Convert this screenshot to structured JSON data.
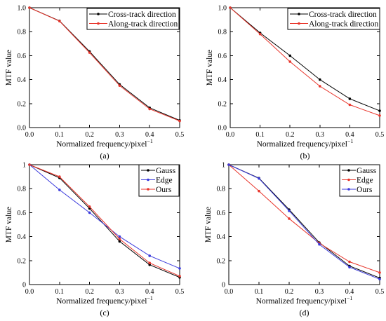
{
  "chart_data": [
    {
      "type": "line",
      "panel_label": "(a)",
      "xlabel": "Normalized frequency/pixel",
      "xlabel_sup": "−1",
      "ylabel": "MTF value",
      "xlim": [
        0,
        0.5
      ],
      "ylim": [
        0,
        1
      ],
      "xticks": [
        "0.0",
        "0.1",
        "0.2",
        "0.3",
        "0.4",
        "0.5"
      ],
      "yticks": [
        "0.0",
        "0.2",
        "0.4",
        "0.6",
        "0.8",
        "1.0"
      ],
      "legend_position": "top-right",
      "grid": false,
      "x": [
        0,
        0.1,
        0.2,
        0.3,
        0.4,
        0.5
      ],
      "series": [
        {
          "name": "Cross-track direction",
          "color": "#000000",
          "values": [
            1.0,
            0.89,
            0.635,
            0.36,
            0.165,
            0.06
          ]
        },
        {
          "name": "Along-track direction",
          "color": "#e8362c",
          "values": [
            1.0,
            0.888,
            0.625,
            0.35,
            0.155,
            0.055
          ]
        }
      ]
    },
    {
      "type": "line",
      "panel_label": "(b)",
      "xlabel": "Normalized frequency/pixel",
      "xlabel_sup": "−1",
      "ylabel": "MTF value",
      "xlim": [
        0,
        0.5
      ],
      "ylim": [
        0,
        1
      ],
      "xticks": [
        "0.0",
        "0.1",
        "0.2",
        "0.3",
        "0.4",
        "0.5"
      ],
      "yticks": [
        "0.0",
        "0.2",
        "0.4",
        "0.6",
        "0.8",
        "1.0"
      ],
      "legend_position": "top-right",
      "grid": false,
      "x": [
        0,
        0.1,
        0.2,
        0.3,
        0.4,
        0.5
      ],
      "series": [
        {
          "name": "Cross-track direction",
          "color": "#000000",
          "values": [
            1.0,
            0.79,
            0.6,
            0.4,
            0.24,
            0.14
          ]
        },
        {
          "name": "Along-track direction",
          "color": "#e8362c",
          "values": [
            1.0,
            0.78,
            0.55,
            0.345,
            0.19,
            0.1
          ]
        }
      ]
    },
    {
      "type": "line",
      "panel_label": "(c)",
      "xlabel": "Normalized frequency/pixel",
      "xlabel_sup": "−1",
      "ylabel": "MTF value",
      "xlim": [
        0,
        0.5
      ],
      "ylim": [
        0,
        1
      ],
      "xticks": [
        "0.0",
        "0.1",
        "0.2",
        "0.3",
        "0.4",
        "0.5"
      ],
      "yticks": [
        "0",
        "0.2",
        "0.4",
        "0.6",
        "0.8",
        "1"
      ],
      "legend_position": "top-right",
      "grid": false,
      "x": [
        0,
        0.1,
        0.2,
        0.3,
        0.4,
        0.5
      ],
      "series": [
        {
          "name": "Gauss",
          "color": "#000000",
          "values": [
            1.0,
            0.89,
            0.635,
            0.36,
            0.165,
            0.06
          ]
        },
        {
          "name": "Edge",
          "color": "#3b3bdc",
          "values": [
            1.0,
            0.79,
            0.6,
            0.4,
            0.24,
            0.135
          ]
        },
        {
          "name": "Ours",
          "color": "#e8362c",
          "values": [
            1.0,
            0.9,
            0.65,
            0.38,
            0.18,
            0.07
          ]
        }
      ]
    },
    {
      "type": "line",
      "panel_label": "(d)",
      "xlabel": "Normalized frequency/pixel",
      "xlabel_sup": "−1",
      "ylabel": "MTF value",
      "xlim": [
        0,
        0.5
      ],
      "ylim": [
        0,
        1
      ],
      "xticks": [
        "0.0",
        "0.1",
        "0.2",
        "0.3",
        "0.4",
        "0.5"
      ],
      "yticks": [
        "0",
        "0.2",
        "0.4",
        "0.6",
        "0.8",
        "1"
      ],
      "legend_position": "top-right",
      "grid": false,
      "x": [
        0,
        0.1,
        0.2,
        0.3,
        0.4,
        0.5
      ],
      "series": [
        {
          "name": "Gauss",
          "color": "#000000",
          "values": [
            1.0,
            0.888,
            0.625,
            0.35,
            0.155,
            0.055
          ]
        },
        {
          "name": "Edge",
          "color": "#e8362c",
          "values": [
            1.0,
            0.78,
            0.55,
            0.345,
            0.19,
            0.1
          ]
        },
        {
          "name": "Ours",
          "color": "#3b3bdc",
          "values": [
            1.0,
            0.885,
            0.615,
            0.335,
            0.145,
            0.045
          ]
        }
      ]
    }
  ]
}
